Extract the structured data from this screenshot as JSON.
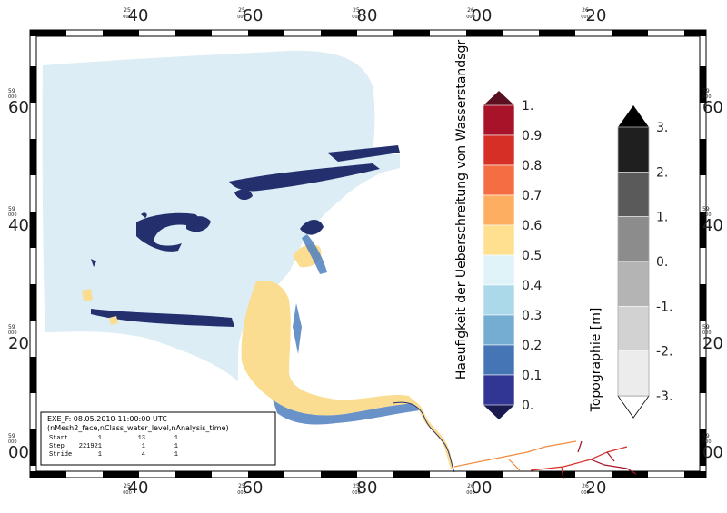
{
  "axes": {
    "x_ticks": [
      {
        "major": "40",
        "minor": "25\n000"
      },
      {
        "major": "60",
        "minor": "25\n000"
      },
      {
        "major": "80",
        "minor": "25\n000"
      },
      {
        "major": "00",
        "minor": "26\n000"
      },
      {
        "major": "20",
        "minor": "26\n000"
      }
    ],
    "y_ticks": [
      {
        "major": "60",
        "minor": "59\n000"
      },
      {
        "major": "40",
        "minor": "59\n000"
      },
      {
        "major": "20",
        "minor": "59\n000"
      },
      {
        "major": "00",
        "minor": "59\n000"
      }
    ]
  },
  "info_box": {
    "line1": "EXE_F: 08.05.2010-11:00:00 UTC",
    "line2": "(nMesh2_face,nClass_water_level,nAnalysis_time)",
    "rows": [
      {
        "label": "Start",
        "a": "1",
        "b": "13",
        "c": "1"
      },
      {
        "label": "Step",
        "a": "221921",
        "b": "1",
        "c": "1"
      },
      {
        "label": "Stride",
        "a": "1",
        "b": "4",
        "c": "1"
      }
    ]
  },
  "colorbar_1": {
    "title": "Haeufigkeit der Ueberschreitung von Wasserstandsgr",
    "labels": [
      "1.",
      "0.9",
      "0.8",
      "0.7",
      "0.6",
      "0.5",
      "0.4",
      "0.3",
      "0.2",
      "0.1",
      "0."
    ],
    "colors": [
      "#a8132a",
      "#d62f26",
      "#f46d43",
      "#fdae61",
      "#fee090",
      "#e0f3f8",
      "#abd9e9",
      "#74add1",
      "#4575b4",
      "#313695"
    ],
    "over_color": "#5a1020",
    "under_color": "#1a1a50"
  },
  "colorbar_2": {
    "title": "Topographie [m]",
    "labels": [
      "3.",
      "2.",
      "1.",
      "0.",
      "-1.",
      "-2.",
      "-3."
    ],
    "colors": [
      "#1f1f1f",
      "#5a5a5a",
      "#8c8c8c",
      "#b4b4b4",
      "#d2d2d2",
      "#ececec"
    ],
    "over_color": "#000000",
    "under_color": "#ffffff"
  },
  "map_colors": {
    "sea": "#dcedf5",
    "sand": "#fbdd92",
    "dark": "#24306e",
    "mid": "#4f7fbf"
  }
}
